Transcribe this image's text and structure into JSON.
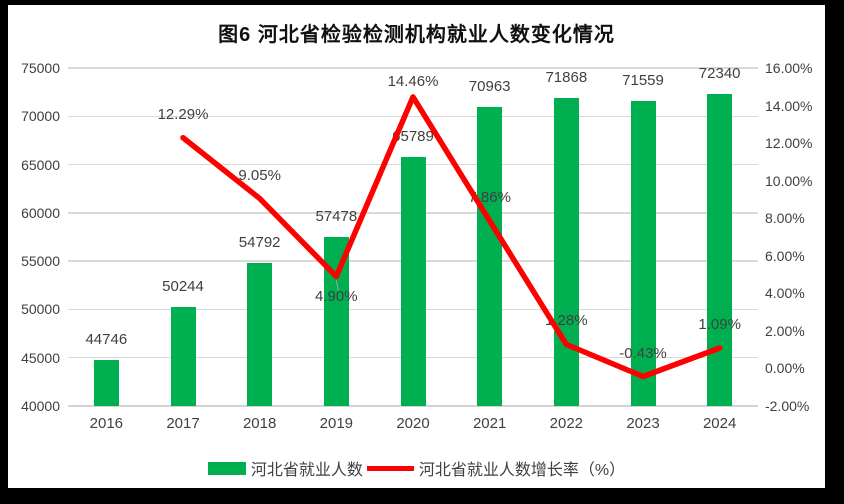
{
  "chart_data": {
    "type": "bar+line",
    "title": "图6 河北省检验检测机构就业人数变化情况",
    "categories": [
      "2016",
      "2017",
      "2018",
      "2019",
      "2020",
      "2021",
      "2022",
      "2023",
      "2024"
    ],
    "series": [
      {
        "name": "河北省就业人数",
        "type": "bar",
        "axis": "left",
        "color": "#00B050",
        "values": [
          44746,
          50244,
          54792,
          57478,
          65789,
          70963,
          71868,
          71559,
          72340
        ],
        "labels": [
          "44746",
          "50244",
          "54792",
          "57478",
          "65789",
          "70963",
          "71868",
          "71559",
          "72340"
        ]
      },
      {
        "name": "河北省就业人数增长率（%）",
        "type": "line",
        "axis": "right",
        "color": "#FF0000",
        "values": [
          null,
          12.29,
          9.05,
          4.9,
          14.46,
          7.86,
          1.28,
          -0.43,
          1.09
        ],
        "labels": [
          null,
          "12.29%",
          "9.05%",
          "4.90%",
          "14.46%",
          "7.86%",
          "1.28%",
          "-0.43%",
          "1.09%"
        ],
        "label_side": [
          null,
          "above",
          "above",
          "below",
          "above",
          "above",
          "above",
          "above",
          "above"
        ]
      }
    ],
    "left_axis": {
      "min": 40000,
      "max": 75000,
      "step": 5000,
      "ticks": [
        "75000",
        "70000",
        "65000",
        "60000",
        "55000",
        "50000",
        "45000",
        "40000"
      ]
    },
    "right_axis": {
      "min": -2,
      "max": 16,
      "step": 2,
      "ticks": [
        "16.00%",
        "14.00%",
        "12.00%",
        "10.00%",
        "8.00%",
        "6.00%",
        "4.00%",
        "2.00%",
        "0.00%",
        "-2.00%"
      ]
    },
    "legend": [
      {
        "label": "河北省就业人数",
        "swatch": "bar",
        "color": "#00B050"
      },
      {
        "label": "河北省就业人数增长率（%）",
        "swatch": "line",
        "color": "#FF0000"
      }
    ],
    "grid": {
      "color": "#d9d9d9",
      "on": true
    },
    "leader_line_color": "#a6a6a6",
    "text_color": "#404040"
  }
}
